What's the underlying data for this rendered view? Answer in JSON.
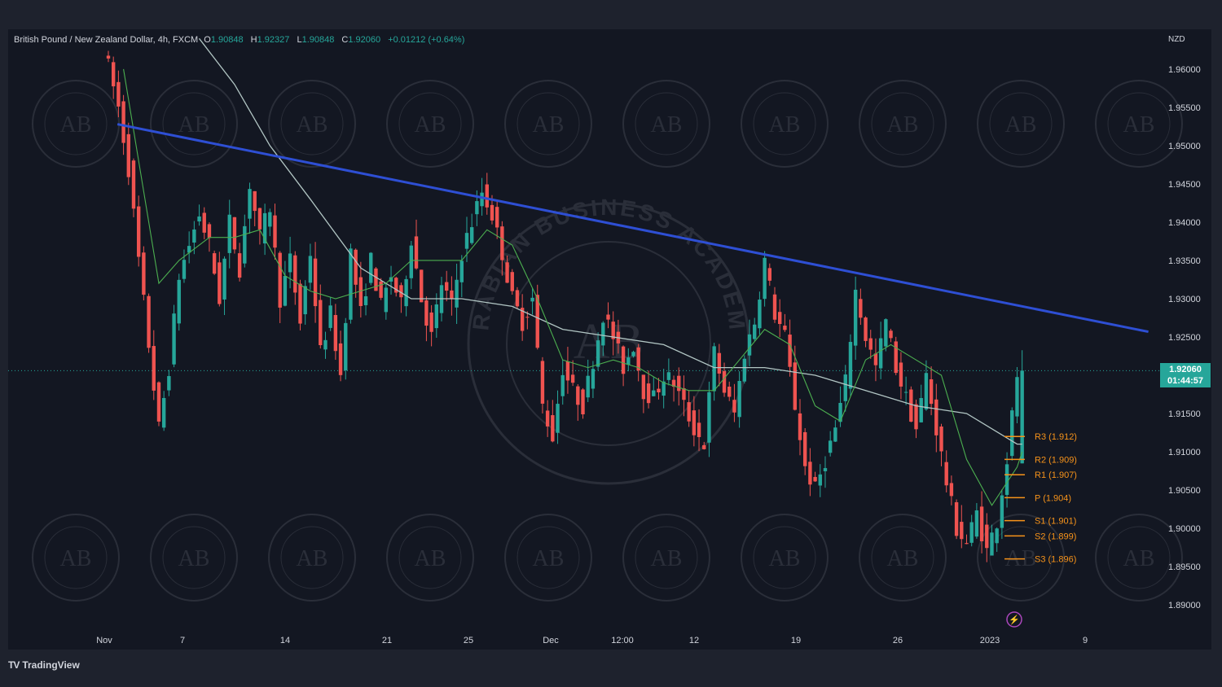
{
  "header": {
    "symbol": "British Pound / New Zealand Dollar, 4h, FXCM",
    "open_label": "O",
    "open": "1.90848",
    "high_label": "H",
    "high": "1.92327",
    "low_label": "L",
    "low": "1.90848",
    "close_label": "C",
    "close": "1.92060",
    "change": "+0.01212 (+0.64%)"
  },
  "axis": {
    "currency": "NZD",
    "price_ticks": [
      "1.96000",
      "1.95500",
      "1.95000",
      "1.94500",
      "1.94000",
      "1.93500",
      "1.93000",
      "1.92500",
      "1.91500",
      "1.91000",
      "1.90500",
      "1.90000",
      "1.89500",
      "1.89000"
    ],
    "time_ticks": [
      "Nov",
      "7",
      "14",
      "21",
      "25",
      "Dec",
      "12:00",
      "12",
      "19",
      "26",
      "2023",
      "9"
    ]
  },
  "last_price": {
    "price": "1.92060",
    "countdown": "01:44:57",
    "color": "#26a69a"
  },
  "pivots": [
    {
      "label": "R3 (1.912)",
      "price": 1.912
    },
    {
      "label": "R2 (1.909)",
      "price": 1.909
    },
    {
      "label": "R1 (1.907)",
      "price": 1.907
    },
    {
      "label": "P (1.904)",
      "price": 1.904
    },
    {
      "label": "S1 (1.901)",
      "price": 1.901
    },
    {
      "label": "S2 (1.899)",
      "price": 1.899
    },
    {
      "label": "S3 (1.896)",
      "price": 1.896
    }
  ],
  "watermark": {
    "small_logo_text": "AB",
    "center_text": "ARABIAN BUSINESS ACADEMY",
    "center_logo": "AB"
  },
  "colors": {
    "up": "#26a69a",
    "down": "#ef5350",
    "trendline": "#2e4fd4",
    "ma_fast": "#4caf50",
    "ma_slow": "#b2c6c4",
    "pivot": "#f7931a"
  },
  "brand": {
    "name": "TradingView",
    "logo": "TV"
  },
  "chart_data": {
    "type": "candlestick",
    "ylim": [
      1.8866,
      1.9652
    ],
    "anchors": [
      [
        0,
        1.963
      ],
      [
        3,
        1.955
      ],
      [
        5,
        1.947
      ],
      [
        7,
        1.935
      ],
      [
        9,
        1.924
      ],
      [
        11,
        1.913
      ],
      [
        13,
        1.921
      ],
      [
        15,
        1.933
      ],
      [
        17,
        1.937
      ],
      [
        19,
        1.941
      ],
      [
        21,
        1.937
      ],
      [
        23,
        1.93
      ],
      [
        25,
        1.94
      ],
      [
        27,
        1.934
      ],
      [
        29,
        1.945
      ],
      [
        31,
        1.938
      ],
      [
        33,
        1.942
      ],
      [
        35,
        1.93
      ],
      [
        37,
        1.935
      ],
      [
        39,
        1.927
      ],
      [
        41,
        1.936
      ],
      [
        43,
        1.923
      ],
      [
        45,
        1.928
      ],
      [
        47,
        1.92
      ],
      [
        49,
        1.936
      ],
      [
        51,
        1.928
      ],
      [
        53,
        1.935
      ],
      [
        55,
        1.929
      ],
      [
        57,
        1.933
      ],
      [
        59,
        1.929
      ],
      [
        61,
        1.938
      ],
      [
        63,
        1.93
      ],
      [
        65,
        1.925
      ],
      [
        67,
        1.932
      ],
      [
        69,
        1.929
      ],
      [
        71,
        1.936
      ],
      [
        73,
        1.94
      ],
      [
        75,
        1.944
      ],
      [
        77,
        1.941
      ],
      [
        79,
        1.936
      ],
      [
        81,
        1.93
      ],
      [
        83,
        1.927
      ],
      [
        85,
        1.93
      ],
      [
        87,
        1.916
      ],
      [
        89,
        1.912
      ],
      [
        91,
        1.921
      ],
      [
        93,
        1.918
      ],
      [
        95,
        1.916
      ],
      [
        97,
        1.922
      ],
      [
        99,
        1.928
      ],
      [
        101,
        1.925
      ],
      [
        103,
        1.921
      ],
      [
        105,
        1.924
      ],
      [
        107,
        1.918
      ],
      [
        109,
        1.917
      ],
      [
        111,
        1.92
      ],
      [
        113,
        1.919
      ],
      [
        115,
        1.916
      ],
      [
        117,
        1.913
      ],
      [
        119,
        1.911
      ],
      [
        121,
        1.923
      ],
      [
        123,
        1.918
      ],
      [
        125,
        1.915
      ],
      [
        127,
        1.923
      ],
      [
        129,
        1.927
      ],
      [
        131,
        1.935
      ],
      [
        133,
        1.928
      ],
      [
        135,
        1.925
      ],
      [
        137,
        1.916
      ],
      [
        139,
        1.908
      ],
      [
        141,
        1.905
      ],
      [
        143,
        1.909
      ],
      [
        145,
        1.913
      ],
      [
        147,
        1.919
      ],
      [
        149,
        1.931
      ],
      [
        151,
        1.925
      ],
      [
        153,
        1.921
      ],
      [
        155,
        1.927
      ],
      [
        157,
        1.921
      ],
      [
        159,
        1.917
      ],
      [
        161,
        1.913
      ],
      [
        163,
        1.92
      ],
      [
        165,
        1.913
      ],
      [
        167,
        1.906
      ],
      [
        169,
        1.9
      ],
      [
        171,
        1.898
      ],
      [
        173,
        1.902
      ],
      [
        175,
        1.897
      ],
      [
        177,
        1.901
      ],
      [
        179,
        1.909
      ],
      [
        181,
        1.92
      ]
    ],
    "x_range": [
      0,
      181
    ],
    "last_close": 1.9206,
    "trendline": [
      [
        1.8,
        1.9528
      ],
      [
        181,
        1.929
      ]
    ],
    "ma_fast": [
      [
        3,
        1.96
      ],
      [
        7,
        1.944
      ],
      [
        10,
        1.932
      ],
      [
        14,
        1.935
      ],
      [
        20,
        1.938
      ],
      [
        25,
        1.938
      ],
      [
        30,
        1.939
      ],
      [
        35,
        1.933
      ],
      [
        40,
        1.931
      ],
      [
        45,
        1.93
      ],
      [
        50,
        1.931
      ],
      [
        55,
        1.932
      ],
      [
        60,
        1.935
      ],
      [
        65,
        1.935
      ],
      [
        70,
        1.935
      ],
      [
        75,
        1.939
      ],
      [
        80,
        1.937
      ],
      [
        85,
        1.93
      ],
      [
        90,
        1.922
      ],
      [
        95,
        1.921
      ],
      [
        100,
        1.922
      ],
      [
        105,
        1.921
      ],
      [
        110,
        1.919
      ],
      [
        115,
        1.918
      ],
      [
        120,
        1.918
      ],
      [
        125,
        1.922
      ],
      [
        130,
        1.926
      ],
      [
        135,
        1.924
      ],
      [
        140,
        1.916
      ],
      [
        145,
        1.914
      ],
      [
        150,
        1.922
      ],
      [
        155,
        1.924
      ],
      [
        160,
        1.922
      ],
      [
        165,
        1.92
      ],
      [
        170,
        1.909
      ],
      [
        175,
        1.903
      ],
      [
        180,
        1.908
      ],
      [
        181,
        1.91
      ]
    ],
    "ma_slow": [
      [
        18,
        1.964
      ],
      [
        25,
        1.958
      ],
      [
        32,
        1.95
      ],
      [
        40,
        1.943
      ],
      [
        50,
        1.934
      ],
      [
        60,
        1.93
      ],
      [
        70,
        1.93
      ],
      [
        80,
        1.929
      ],
      [
        90,
        1.926
      ],
      [
        100,
        1.925
      ],
      [
        110,
        1.924
      ],
      [
        120,
        1.921
      ],
      [
        130,
        1.921
      ],
      [
        140,
        1.92
      ],
      [
        150,
        1.918
      ],
      [
        160,
        1.916
      ],
      [
        170,
        1.915
      ],
      [
        180,
        1.911
      ],
      [
        181,
        1.911
      ]
    ]
  }
}
